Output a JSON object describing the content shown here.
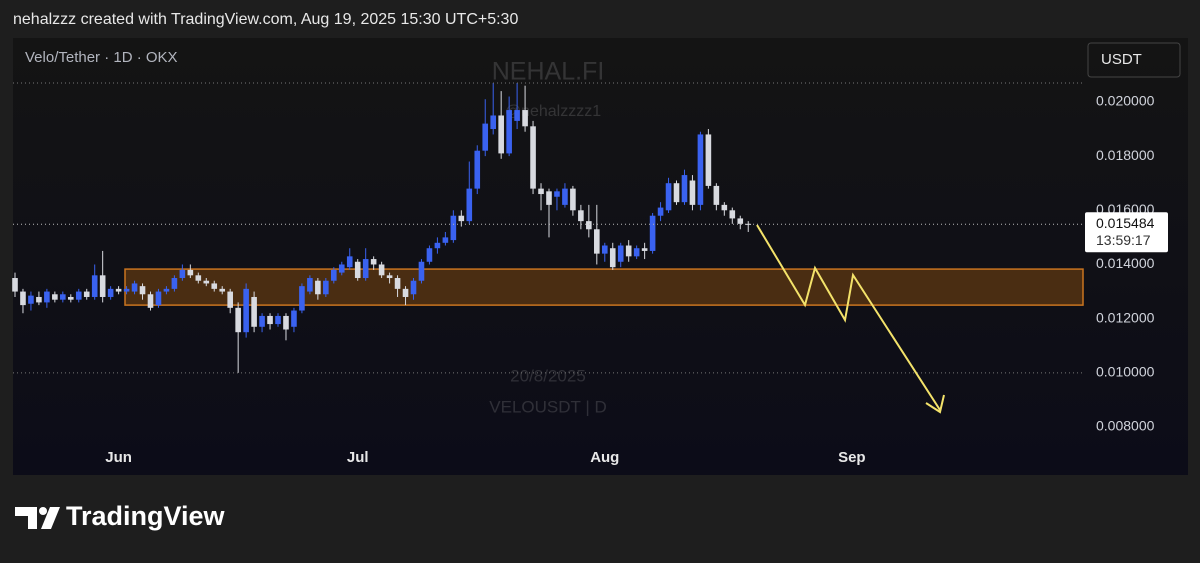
{
  "header": "nehalzzz created with TradingView.com, Aug 19, 2025 15:30 UTC+5:30",
  "logo": "TradingView",
  "chart_data": {
    "type": "candlestick",
    "symbol": "Velo/Tether · 1D · OKX",
    "currency": "USDT",
    "watermark": [
      "NEHAL.FI",
      "@nehalzzzz1",
      "20/8/2025",
      "VELOUSDT | D"
    ],
    "up_color": "#3a62f0",
    "down_color": "#d8dae0",
    "categories": [
      null,
      null,
      null,
      null,
      null,
      null,
      null,
      null,
      null,
      null,
      null,
      null,
      null,
      "Jun",
      null,
      null,
      null,
      null,
      null,
      null,
      null,
      null,
      null,
      null,
      null,
      null,
      null,
      null,
      null,
      null,
      null,
      null,
      null,
      null,
      null,
      null,
      null,
      null,
      null,
      null,
      null,
      null,
      null,
      "Jul",
      null,
      null,
      null,
      null,
      null,
      null,
      null,
      null,
      null,
      null,
      null,
      null,
      null,
      null,
      null,
      null,
      null,
      null,
      null,
      null,
      null,
      null,
      null,
      null,
      null,
      null,
      null,
      null,
      null,
      null,
      "Aug",
      null,
      null,
      null,
      null,
      null,
      null,
      null,
      null,
      null,
      null,
      null,
      null,
      null,
      null,
      null,
      null,
      null,
      null,
      null,
      null,
      null,
      null,
      null,
      null,
      null,
      null,
      null,
      null,
      null,
      null,
      "Sep",
      null,
      null,
      null,
      null,
      null,
      null,
      null,
      null,
      null,
      null,
      null,
      null,
      null,
      null,
      null,
      null,
      null,
      null,
      null,
      null,
      null,
      null,
      null,
      null,
      null,
      null,
      null,
      null
    ],
    "open": [
      0.0135,
      0.013,
      0.01255,
      0.0128,
      0.0126,
      0.0129,
      0.0127,
      0.0128,
      0.0127,
      0.013,
      0.0128,
      0.0136,
      0.0128,
      0.0131,
      0.013,
      0.013,
      0.0132,
      0.0129,
      0.0125,
      0.013,
      0.0131,
      0.0135,
      0.0138,
      0.0136,
      0.0134,
      0.0133,
      0.0131,
      0.013,
      0.0124,
      0.0115,
      0.0128,
      0.0117,
      0.0121,
      0.0118,
      0.0121,
      0.0117,
      0.0123,
      0.013,
      0.0134,
      0.0129,
      0.0134,
      0.0137,
      0.0139,
      0.0141,
      0.0135,
      0.0142,
      0.014,
      0.0136,
      0.0135,
      0.0131,
      0.0129,
      0.0134,
      0.0141,
      0.0146,
      0.0148,
      0.0149,
      0.0158,
      0.0156,
      0.0168,
      0.0182,
      0.019,
      0.0195,
      0.0181,
      0.0193,
      0.0197,
      0.0191,
      0.0168,
      0.0167,
      0.0165,
      0.0162,
      0.0168,
      0.016,
      0.0156,
      0.0153,
      0.0144,
      0.0146,
      0.0141,
      0.0147,
      0.0143,
      0.0146,
      0.0145,
      0.0158,
      0.016,
      0.017,
      0.0163,
      0.0171,
      0.0162,
      0.0188,
      0.0169,
      0.0162,
      0.016,
      0.0157,
      0.0155,
      null,
      null,
      null,
      null,
      null,
      null,
      null,
      null,
      null,
      null,
      null,
      null,
      null,
      null,
      null,
      null,
      null,
      null,
      null,
      null,
      null,
      null,
      null,
      null,
      null,
      null,
      null,
      null,
      null,
      null,
      null,
      null,
      null,
      null,
      null,
      null,
      null,
      null,
      null,
      null,
      null
    ],
    "high": [
      0.0137,
      0.0131,
      0.013,
      0.013,
      0.0131,
      0.013,
      0.013,
      0.0129,
      0.0131,
      0.0131,
      0.014,
      0.0145,
      0.0132,
      0.0132,
      0.0132,
      0.0134,
      0.0133,
      0.013,
      0.0131,
      0.0132,
      0.0136,
      0.014,
      0.014,
      0.0137,
      0.0135,
      0.0134,
      0.0132,
      0.0131,
      0.0126,
      0.0133,
      0.013,
      0.0122,
      0.0122,
      0.0122,
      0.0122,
      0.0124,
      0.0133,
      0.0136,
      0.0135,
      0.0135,
      0.0139,
      0.0141,
      0.0146,
      0.0142,
      0.0146,
      0.0143,
      0.0141,
      0.0137,
      0.0136,
      0.0132,
      0.0135,
      0.0142,
      0.0147,
      0.015,
      0.0152,
      0.016,
      0.016,
      0.0178,
      0.0184,
      0.0201,
      0.0207,
      0.0204,
      0.0202,
      0.0207,
      0.0206,
      0.0193,
      0.017,
      0.0168,
      0.0168,
      0.017,
      0.0169,
      0.0162,
      0.0162,
      0.0162,
      0.0148,
      0.0148,
      0.0148,
      0.0149,
      0.0147,
      0.0148,
      0.0159,
      0.0163,
      0.0172,
      0.0171,
      0.0175,
      0.0173,
      0.0189,
      0.019,
      0.017,
      0.0163,
      0.0161,
      0.0158,
      0.0156,
      null,
      null,
      null,
      null,
      null,
      null,
      null,
      null,
      null,
      null,
      null,
      null,
      null,
      null,
      null,
      null,
      null,
      null,
      null,
      null,
      null,
      null,
      null,
      null,
      null,
      null,
      null,
      null,
      null,
      null,
      null,
      null,
      null,
      null,
      null,
      null,
      null,
      null,
      null,
      null,
      null
    ],
    "low": [
      0.0128,
      0.0122,
      0.0123,
      0.0125,
      0.0124,
      0.0126,
      0.0126,
      0.0126,
      0.0126,
      0.0127,
      0.0127,
      0.0126,
      0.0127,
      0.0129,
      0.0129,
      0.0129,
      0.0127,
      0.0123,
      0.0124,
      0.0129,
      0.013,
      0.0134,
      0.0135,
      0.0133,
      0.0132,
      0.013,
      0.0129,
      0.0122,
      0.01,
      0.0113,
      0.0115,
      0.0115,
      0.0116,
      0.0117,
      0.0112,
      0.0115,
      0.0122,
      0.0129,
      0.0127,
      0.0128,
      0.0133,
      0.0136,
      0.0138,
      0.0134,
      0.0134,
      0.0138,
      0.0135,
      0.0133,
      0.0128,
      0.0125,
      0.0127,
      0.0133,
      0.014,
      0.0144,
      0.0147,
      0.0148,
      0.0154,
      0.0155,
      0.0166,
      0.018,
      0.0188,
      0.0179,
      0.018,
      0.019,
      0.0189,
      0.0166,
      0.016,
      0.015,
      0.016,
      0.0161,
      0.0158,
      0.0153,
      0.015,
      0.014,
      0.0141,
      0.0138,
      0.0139,
      0.0141,
      0.0142,
      0.0142,
      0.0144,
      0.0156,
      0.0159,
      0.0162,
      0.0162,
      0.016,
      0.016,
      0.0168,
      0.016,
      0.0158,
      0.0155,
      0.0153,
      0.0152,
      null,
      null,
      null,
      null,
      null,
      null,
      null,
      null,
      null,
      null,
      null,
      null,
      null,
      null,
      null,
      null,
      null,
      null,
      null,
      null,
      null,
      null,
      null,
      null,
      null,
      null,
      null,
      null,
      null,
      null,
      null,
      null,
      null,
      null,
      null,
      null,
      null,
      null,
      null,
      null,
      null
    ],
    "close": [
      0.013,
      0.0125,
      0.01285,
      0.0126,
      0.013,
      0.0127,
      0.0129,
      0.0127,
      0.013,
      0.0128,
      0.0136,
      0.0128,
      0.0131,
      0.013,
      0.0131,
      0.0133,
      0.0129,
      0.0124,
      0.013,
      0.0131,
      0.0135,
      0.0138,
      0.0136,
      0.0134,
      0.0133,
      0.0131,
      0.013,
      0.0124,
      0.0115,
      0.0131,
      0.0117,
      0.0121,
      0.0118,
      0.0121,
      0.0116,
      0.0123,
      0.0132,
      0.0135,
      0.0129,
      0.0134,
      0.0138,
      0.014,
      0.0143,
      0.0135,
      0.0142,
      0.014,
      0.0136,
      0.0135,
      0.0131,
      0.0128,
      0.0134,
      0.0141,
      0.0146,
      0.0148,
      0.015,
      0.0158,
      0.0156,
      0.0168,
      0.0182,
      0.0192,
      0.0195,
      0.0181,
      0.0197,
      0.0197,
      0.0191,
      0.0168,
      0.0166,
      0.0162,
      0.0167,
      0.0168,
      0.016,
      0.0156,
      0.0153,
      0.0144,
      0.0147,
      0.0139,
      0.0147,
      0.0143,
      0.0146,
      0.0145,
      0.0158,
      0.0161,
      0.017,
      0.0163,
      0.0173,
      0.0162,
      0.0188,
      0.0169,
      0.0162,
      0.016,
      0.0157,
      0.0155,
      0.015484,
      null,
      null,
      null,
      null,
      null,
      null,
      null,
      null,
      null,
      null,
      null,
      null,
      null,
      null,
      null,
      null,
      null,
      null,
      null,
      null,
      null,
      null,
      null,
      null,
      null,
      null,
      null,
      null,
      null,
      null,
      null,
      null,
      null,
      null,
      null,
      null,
      null,
      null,
      null,
      null,
      null
    ],
    "last_price": 0.015484,
    "countdown": "13:59:17",
    "zone": {
      "low": 0.0125,
      "high": 0.01383
    },
    "ylim": [
      0.00741,
      0.02236
    ],
    "yticks": [
      {
        "value": 0.008,
        "label": "0.008000"
      },
      {
        "value": 0.01,
        "label": "0.010000"
      },
      {
        "value": 0.012,
        "label": "0.012000"
      },
      {
        "value": 0.014,
        "label": "0.014000"
      },
      {
        "value": 0.016,
        "label": "0.016000"
      },
      {
        "value": 0.018,
        "label": "0.018000"
      },
      {
        "value": 0.02,
        "label": "0.020000"
      }
    ]
  }
}
